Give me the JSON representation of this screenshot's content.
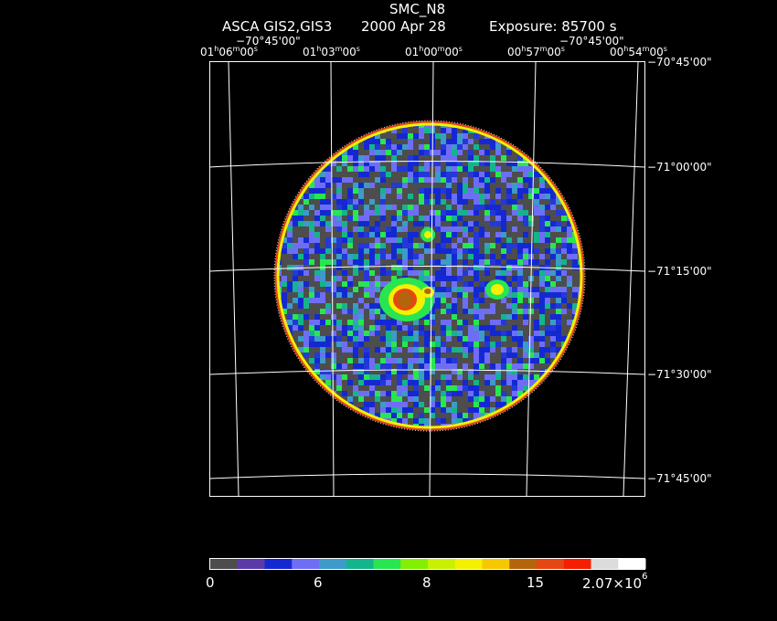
{
  "header": {
    "object": "SMC_N8",
    "instrument": "ASCA GIS2,GIS3",
    "date": "2000 Apr 28",
    "exposure": "Exposure: 85700 s"
  },
  "coords": {
    "top_dec_left": "−70°45'00\"",
    "top_dec_right": "−70°45'00\"",
    "ra": [
      {
        "h": "01",
        "m": "06",
        "s": "00"
      },
      {
        "h": "01",
        "m": "03",
        "s": "00"
      },
      {
        "h": "01",
        "m": "00",
        "s": "00"
      },
      {
        "h": "00",
        "m": "57",
        "s": "00"
      },
      {
        "h": "00",
        "m": "54",
        "s": "00"
      }
    ],
    "dec": [
      "−70°45'00\"",
      "−71°00'00\"",
      "−71°15'00\"",
      "−71°30'00\"",
      "−71°45'00\""
    ]
  },
  "colorbar": {
    "colors": [
      "#4d4d4d",
      "#5b3aa8",
      "#1428d2",
      "#6e6ef5",
      "#3c9bc8",
      "#14b48c",
      "#28e650",
      "#82f000",
      "#c8f000",
      "#f5f000",
      "#f5c800",
      "#b4640a",
      "#e64614",
      "#f51e00",
      "#dcdcdc",
      "#ffffff"
    ],
    "labels": {
      "l0": "0",
      "l1": "6",
      "l2": "8",
      "l3": "15",
      "l4_base": "2.07×10",
      "l4_exp": "6"
    }
  }
}
